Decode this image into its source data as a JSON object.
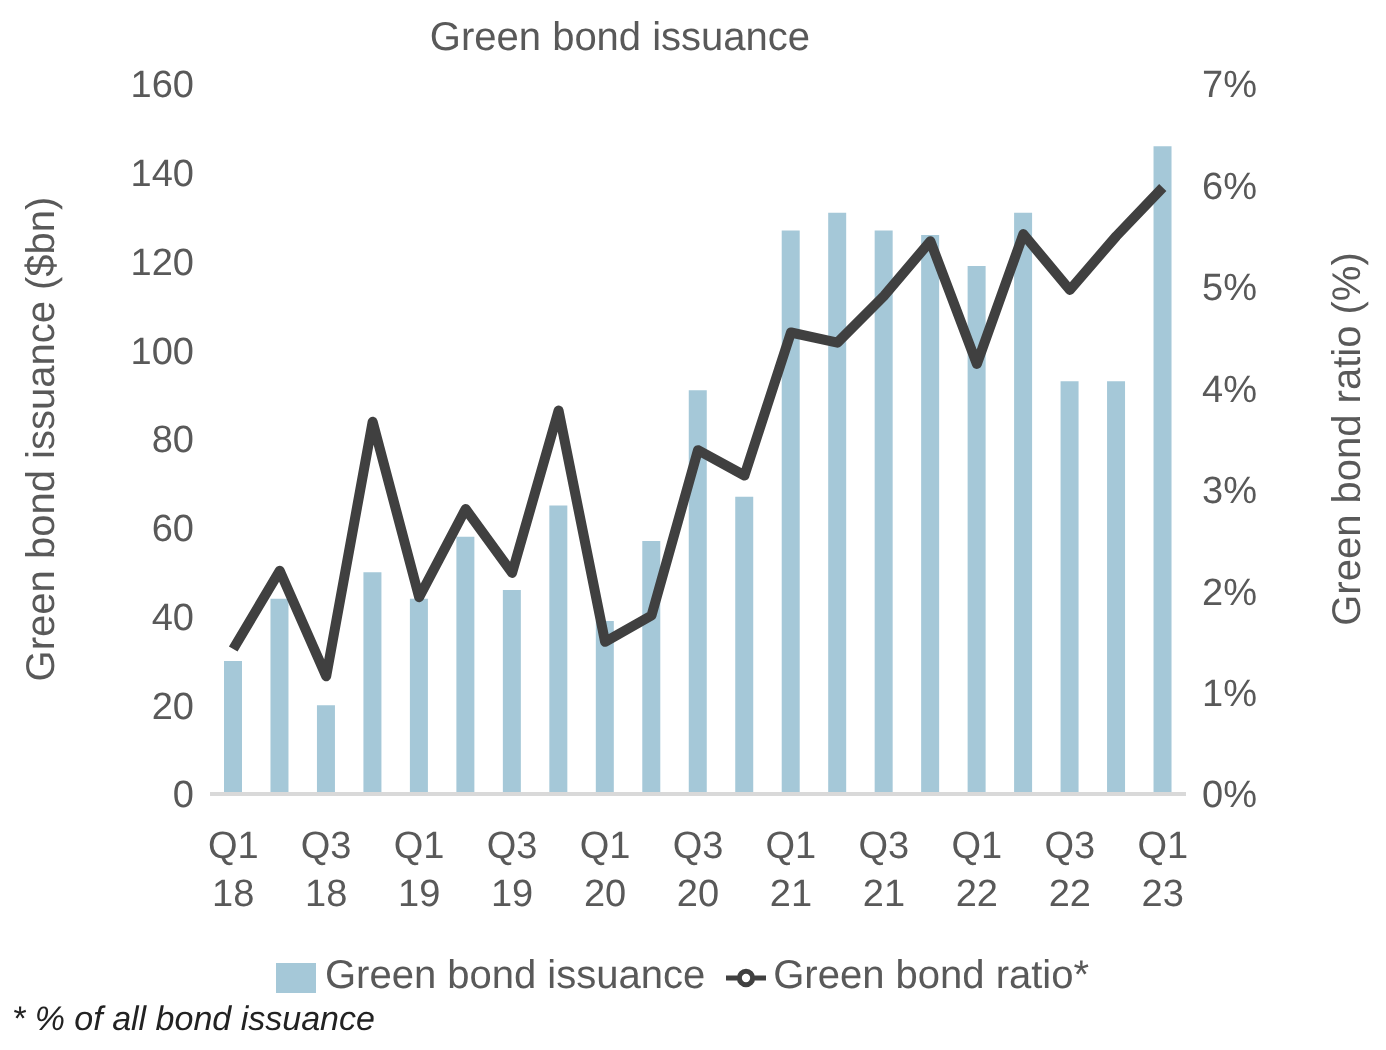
{
  "chart_data": {
    "type": "bar",
    "title": "Green bond issuance",
    "ylabel": "Green bond issuance ($bn)",
    "y2label": "Green bond ratio (%)",
    "categories": [
      "Q1 18",
      null,
      "Q3 18",
      null,
      "Q1 19",
      null,
      "Q3 19",
      null,
      "Q1 20",
      null,
      "Q3 20",
      null,
      "Q1 21",
      null,
      "Q3 21",
      null,
      "Q1 22",
      null,
      "Q3 22",
      null,
      "Q1 23"
    ],
    "series": [
      {
        "name": "Green bond issuance",
        "color": "#a5c8d8",
        "values": [
          30,
          44,
          20,
          50,
          44,
          58,
          46,
          65,
          39,
          57,
          91,
          67,
          127,
          131,
          127,
          126,
          119,
          131,
          93,
          93,
          146
        ]
      },
      {
        "name": "Green bond ratio*",
        "type": "line",
        "axis": "y2",
        "color": "#404040",
        "values": [
          1.43,
          2.2,
          1.16,
          3.67,
          1.94,
          2.81,
          2.18,
          3.78,
          1.5,
          1.76,
          3.39,
          3.14,
          4.55,
          4.45,
          4.91,
          5.45,
          4.24,
          5.52,
          4.97,
          5.5,
          5.98
        ]
      }
    ],
    "ylim": [
      0,
      160
    ],
    "yticks": [
      0,
      20,
      40,
      60,
      80,
      100,
      120,
      140,
      160
    ],
    "y2lim": [
      0,
      7
    ],
    "y2ticks": [
      {
        "value": 0,
        "label": "0%"
      },
      {
        "value": 1,
        "label": "1%"
      },
      {
        "value": 2,
        "label": "2%"
      },
      {
        "value": 3,
        "label": "3%"
      },
      {
        "value": 4,
        "label": "4%"
      },
      {
        "value": 5,
        "label": "5%"
      },
      {
        "value": 6,
        "label": "6%"
      },
      {
        "value": 7,
        "label": "7%"
      }
    ],
    "grid": false,
    "legend": "bottom",
    "marker": "none",
    "line_style": "solid",
    "annotations": [
      "* % of all bond issuance"
    ]
  }
}
